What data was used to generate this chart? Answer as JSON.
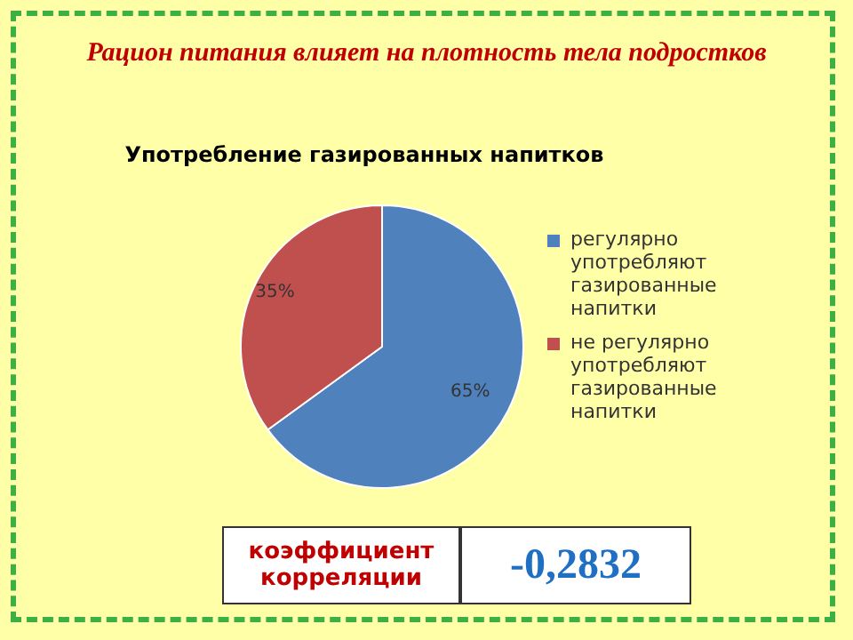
{
  "chart_data": {
    "type": "pie",
    "title": "Рацион питания влияет на плотность тела подростков",
    "subtitle": "Употребление газированных напитков",
    "categories": [
      "регулярно употребляют газированные напитки",
      "не регулярно употребляют газированные напитки"
    ],
    "values": [
      65,
      35
    ],
    "colors": [
      "#4f81bd",
      "#c0504d"
    ],
    "value_labels": [
      "65%",
      "35%"
    ],
    "legend": "right",
    "annotations": [
      "коэффициент корреляции",
      "-0,2832"
    ]
  }
}
